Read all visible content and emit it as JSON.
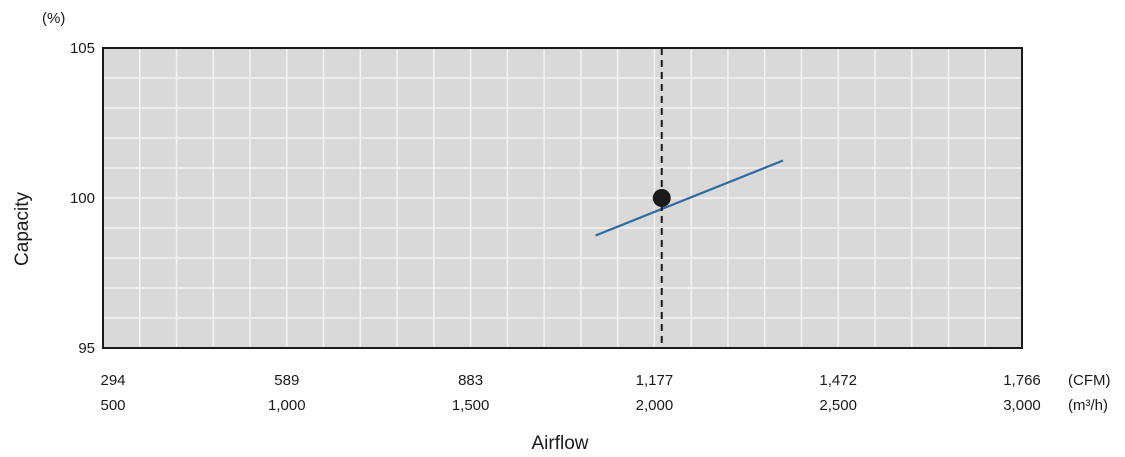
{
  "chart_data": {
    "type": "line",
    "ylabel": "Capacity",
    "y_unit": "(%)",
    "xlabel": "Airflow",
    "ylim": [
      95,
      105
    ],
    "y_ticks": [
      95,
      100,
      105
    ],
    "x_unit_primary": "(CFM)",
    "x_unit_secondary": "(m³/h)",
    "xlim_m3h": [
      500,
      3000
    ],
    "x_ticks_m3h": [
      500,
      1000,
      1500,
      2000,
      2500,
      3000
    ],
    "x_tick_labels_cfm": [
      "294",
      "589",
      "883",
      "1,177",
      "1,472",
      "1,766"
    ],
    "x_tick_labels_m3h": [
      "500",
      "1,000",
      "1,500",
      "2,000",
      "2,500",
      "3,000"
    ],
    "minor_grid_y_step": 1,
    "minor_grid_x_step_m3h": 100,
    "series": [
      {
        "color": "#2f6aa3",
        "points": [
          {
            "x": 1840,
            "y": 98.75
          },
          {
            "x": 2350,
            "y": 101.25
          }
        ]
      }
    ],
    "marker": {
      "x": 2020,
      "y": 100,
      "color": "#1a1a1a"
    },
    "reference_line": {
      "x": 2020,
      "style": "dashed",
      "color": "#1a1a1a"
    },
    "plot_background": "#d9d9d9",
    "grid_color": "#f2f2f2",
    "grid": true
  }
}
